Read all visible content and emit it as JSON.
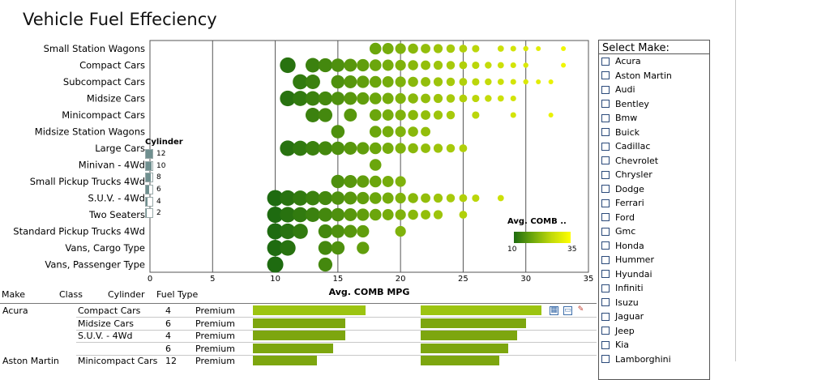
{
  "page_title": "Vehicle Fuel Effeciency",
  "chart_data": {
    "type": "scatter",
    "title": "Vehicle Fuel Effeciency",
    "xlabel": "Avg. COMB MPG",
    "ylabel": "",
    "xlim": [
      0,
      35
    ],
    "xticks": [
      "0",
      "5",
      "10",
      "15",
      "20",
      "25",
      "30",
      "35"
    ],
    "grid": true,
    "categories": [
      "Small Station Wagons",
      "Compact Cars",
      "Subcompact Cars",
      "Midsize Cars",
      "Minicompact Cars",
      "Midsize Station Wagons",
      "Large Cars",
      "Minivan - 4Wd",
      "Small Pickup Trucks 4Wd",
      "S.U.V. - 4Wd",
      "Two Seaters",
      "Standard Pickup Trucks 4Wd",
      "Vans, Cargo Type",
      "Vans, Passenger Type"
    ],
    "points": [
      {
        "class": "Small Station Wagons",
        "mpg": [
          18,
          19,
          20,
          21,
          22,
          23,
          24,
          25,
          26,
          28,
          29,
          30,
          31,
          33
        ]
      },
      {
        "class": "Compact Cars",
        "mpg": [
          11,
          13,
          14,
          15,
          16,
          17,
          18,
          19,
          20,
          21,
          22,
          23,
          24,
          25,
          26,
          27,
          28,
          29,
          30,
          33
        ]
      },
      {
        "class": "Subcompact Cars",
        "mpg": [
          12,
          13,
          15,
          16,
          17,
          18,
          19,
          20,
          21,
          22,
          23,
          24,
          25,
          26,
          27,
          28,
          29,
          30,
          31,
          32
        ]
      },
      {
        "class": "Midsize Cars",
        "mpg": [
          11,
          12,
          13,
          14,
          15,
          16,
          17,
          18,
          19,
          20,
          21,
          22,
          23,
          24,
          25,
          26,
          27,
          28,
          29
        ]
      },
      {
        "class": "Minicompact Cars",
        "mpg": [
          13,
          14,
          16,
          18,
          19,
          20,
          21,
          22,
          23,
          24,
          26,
          29,
          32
        ]
      },
      {
        "class": "Midsize Station Wagons",
        "mpg": [
          15,
          18,
          19,
          20,
          21,
          22
        ]
      },
      {
        "class": "Large Cars",
        "mpg": [
          11,
          12,
          13,
          14,
          15,
          16,
          17,
          18,
          19,
          20,
          21,
          22,
          23,
          24,
          25
        ]
      },
      {
        "class": "Minivan - 4Wd",
        "mpg": [
          18
        ]
      },
      {
        "class": "Small Pickup Trucks 4Wd",
        "mpg": [
          15,
          16,
          17,
          18,
          19,
          20
        ]
      },
      {
        "class": "S.U.V. - 4Wd",
        "mpg": [
          10,
          11,
          12,
          13,
          14,
          15,
          16,
          17,
          18,
          19,
          20,
          21,
          22,
          23,
          24,
          25,
          26,
          28
        ]
      },
      {
        "class": "Two Seaters",
        "mpg": [
          10,
          11,
          12,
          13,
          14,
          15,
          16,
          17,
          18,
          19,
          20,
          21,
          22,
          23,
          25
        ]
      },
      {
        "class": "Standard Pickup Trucks 4Wd",
        "mpg": [
          10,
          11,
          12,
          14,
          15,
          16,
          17,
          20
        ]
      },
      {
        "class": "Vans, Cargo Type",
        "mpg": [
          10,
          11,
          14,
          15,
          17
        ]
      },
      {
        "class": "Vans, Passenger Type",
        "mpg": [
          10,
          14
        ]
      }
    ],
    "size_legend": {
      "title": "Cylinder",
      "levels": [
        "12",
        "10",
        "8",
        "6",
        "4",
        "2"
      ],
      "fill": [
        1.0,
        0.85,
        0.7,
        0.5,
        0.3,
        0.12
      ]
    },
    "color_legend": {
      "title": "Avg. COMB ..",
      "min": "10",
      "max": "35",
      "colors": [
        "#1e6b10",
        "#ffff00"
      ]
    }
  },
  "make_filter": {
    "title": "Select Make:",
    "items": [
      "Acura",
      "Aston Martin",
      "Audi",
      "Bentley",
      "Bmw",
      "Buick",
      "Cadillac",
      "Chevrolet",
      "Chrysler",
      "Dodge",
      "Ferrari",
      "Ford",
      "Gmc",
      "Honda",
      "Hummer",
      "Hyundai",
      "Infiniti",
      "Isuzu",
      "Jaguar",
      "Jeep",
      "Kia",
      "Lamborghini"
    ]
  },
  "table": {
    "headers": {
      "make": "Make",
      "class": "Class",
      "cylinder": "Cylinder",
      "fuel_type": "Fuel Type"
    },
    "rows": [
      {
        "make": "Acura",
        "class": "Compact Cars",
        "cylinder": "4",
        "fuel_type": "Premium",
        "bar1": 0.67,
        "bar2": 0.69
      },
      {
        "make": "",
        "class": "Midsize Cars",
        "cylinder": "6",
        "fuel_type": "Premium",
        "bar1": 0.55,
        "bar2": 0.6
      },
      {
        "make": "",
        "class": "S.U.V. - 4Wd",
        "cylinder": "4",
        "fuel_type": "Premium",
        "bar1": 0.55,
        "bar2": 0.55
      },
      {
        "make": "",
        "class": "",
        "cylinder": "6",
        "fuel_type": "Premium",
        "bar1": 0.48,
        "bar2": 0.5
      },
      {
        "make": "Aston Martin",
        "class": "Minicompact Cars",
        "cylinder": "12",
        "fuel_type": "Premium",
        "bar1": 0.38,
        "bar2": 0.45
      }
    ]
  },
  "toolbar_icons": [
    "table-icon",
    "window-icon",
    "edit-icon"
  ]
}
